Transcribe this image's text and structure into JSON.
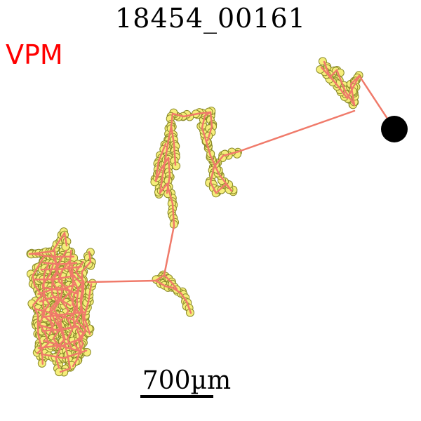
{
  "figure": {
    "title": "18454_00161",
    "region_label": "VPM",
    "scale_bar_label": "700µm",
    "colors": {
      "trace_line": "#f07a6a",
      "marker_fill": "#f5ee7a",
      "marker_edge": "#8a8a2a",
      "soma": "#000000",
      "region_label": "#ff0000"
    }
  }
}
